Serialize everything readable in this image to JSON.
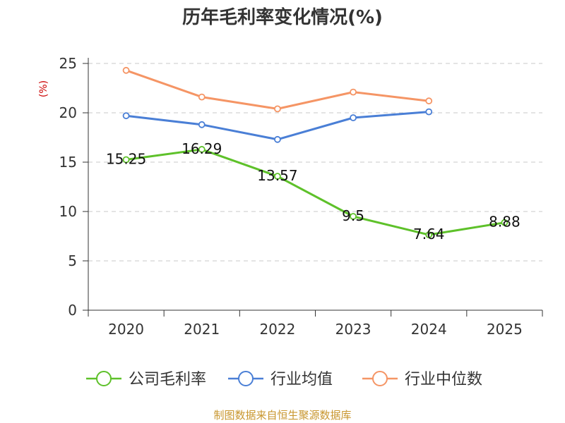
{
  "chart_data": {
    "type": "line",
    "title": "历年毛利率变化情况(%)",
    "ylabel": "(%)",
    "ylabel_color": "#cc0000",
    "ylim": [
      0,
      25
    ],
    "yticks": [
      0,
      5,
      10,
      15,
      20,
      25
    ],
    "categories": [
      "2020",
      "2021",
      "2022",
      "2023",
      "2024",
      "2025"
    ],
    "grid": true,
    "legend_position": "bottom",
    "series": [
      {
        "name": "公司毛利率",
        "color": "#5ec12a",
        "values": [
          15.25,
          16.29,
          13.57,
          9.5,
          7.64,
          8.88
        ],
        "data_labels": [
          "15.25",
          "16.29",
          "13.57",
          "9.5",
          "7.64",
          "8.88"
        ]
      },
      {
        "name": "行业均值",
        "color": "#4a7fd6",
        "values": [
          19.7,
          18.8,
          17.3,
          19.5,
          20.1,
          null
        ]
      },
      {
        "name": "行业中位数",
        "color": "#f59565",
        "values": [
          24.3,
          21.6,
          20.4,
          22.1,
          21.2,
          null
        ]
      }
    ]
  },
  "source_text": "制图数据来自恒生聚源数据库",
  "source_color": "#c8962e"
}
